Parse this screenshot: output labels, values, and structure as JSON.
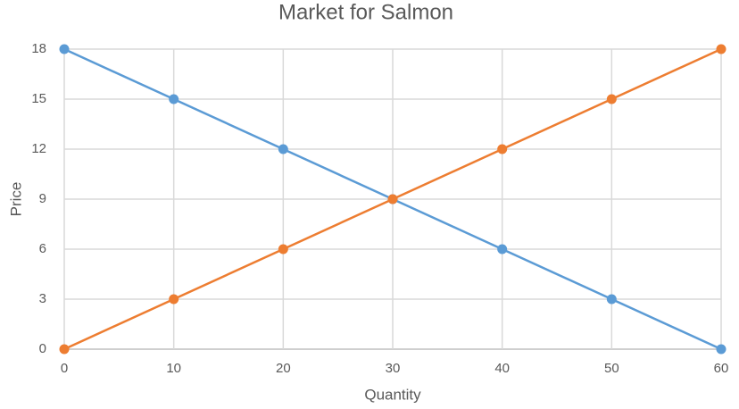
{
  "chart_data": {
    "type": "line",
    "title": "Market for Salmon",
    "x_label": "Quantity",
    "y_label": "Price",
    "x": [
      0,
      10,
      20,
      30,
      40,
      50,
      60
    ],
    "series": [
      {
        "color": "#5b9bd5",
        "values": [
          18,
          15,
          12,
          9,
          6,
          3,
          0
        ]
      },
      {
        "color": "#ed7d31",
        "values": [
          0,
          3,
          6,
          9,
          12,
          15,
          18
        ]
      }
    ],
    "xlim": [
      0,
      60
    ],
    "xticks": [
      0,
      10,
      20,
      30,
      40,
      50,
      60
    ],
    "ylim": [
      0,
      18
    ],
    "yticks": [
      0,
      3,
      6,
      9,
      12,
      15,
      18
    ],
    "grid": true
  }
}
